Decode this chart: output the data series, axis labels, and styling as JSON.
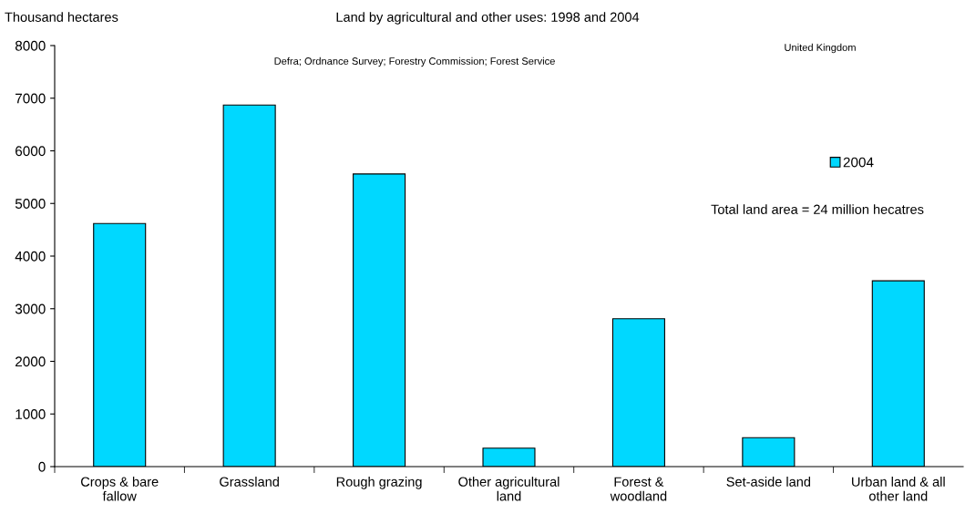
{
  "chart_data": {
    "type": "bar",
    "title": "Land by agricultural and other uses: 1998 and 2004",
    "ylabel": "Thousand hectares",
    "categories": [
      "Crops & bare\nfallow",
      "Grassland",
      "Rough grazing",
      "Other agricultural\nland",
      "Forest &\nwoodland",
      "Set-aside land",
      "Urban land & all\nother land"
    ],
    "series": [
      {
        "name": "2004",
        "color": "#00d8ff",
        "values": [
          4620,
          6870,
          5560,
          350,
          2810,
          550,
          3530
        ]
      }
    ],
    "ylim": [
      0,
      8000
    ],
    "yticks": [
      0,
      1000,
      2000,
      3000,
      4000,
      5000,
      6000,
      7000,
      8000
    ],
    "grid": false,
    "legend": "right",
    "annotations": [
      "United Kingdom",
      "Defra; Ordnance Survey; Forestry Commission; Forest Service",
      "Total land area = 24 million hecatres"
    ]
  }
}
